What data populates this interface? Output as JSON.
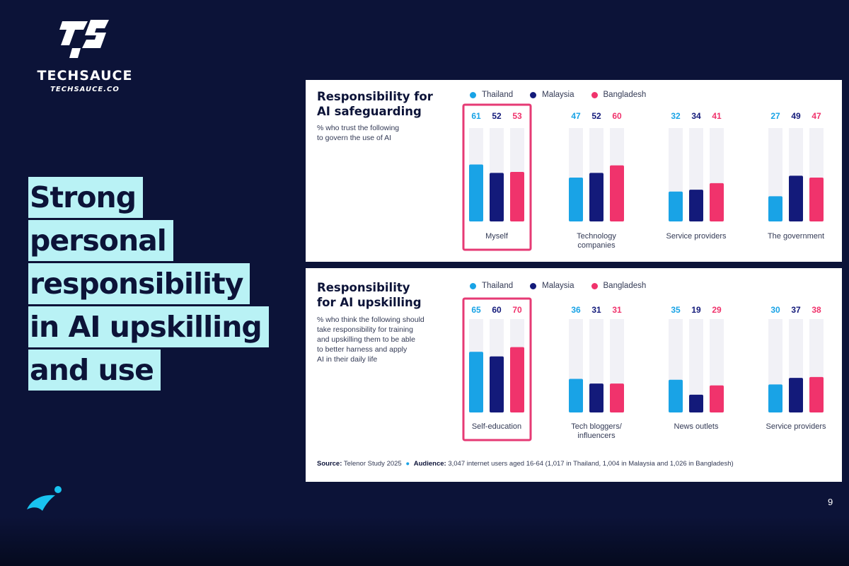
{
  "brand": {
    "name": "TECHSAUCE",
    "url": "TECHSAUCE.CO",
    "logo_icon": "techsauce-logo-icon"
  },
  "headline": [
    "Strong",
    "personal",
    "responsibility",
    "in AI upskilling",
    "and use"
  ],
  "colors": {
    "background": "#0c1338",
    "highlight": "#b9f2f5",
    "highlight_box": "#e63a74",
    "thailand": "#19a3e6",
    "malaysia": "#131a7a",
    "bangladesh": "#f0336c",
    "track": "#f1f1f6"
  },
  "chart_data": [
    {
      "type": "bar",
      "title": "Responsibility for\nAI safeguarding",
      "subtitle": "% who trust the following\nto govern the use of AI",
      "legend_position": "top",
      "ylim": [
        0,
        100
      ],
      "categories": [
        "Myself",
        "Technology\ncompanies",
        "Service providers",
        "The government"
      ],
      "highlighted_category": "Myself",
      "series": [
        {
          "name": "Thailand",
          "color": "#19a3e6",
          "values": [
            61,
            47,
            32,
            27
          ]
        },
        {
          "name": "Malaysia",
          "color": "#131a7a",
          "values": [
            52,
            52,
            34,
            49
          ]
        },
        {
          "name": "Bangladesh",
          "color": "#f0336c",
          "values": [
            53,
            60,
            41,
            47
          ]
        }
      ]
    },
    {
      "type": "bar",
      "title": "Responsibility\nfor AI upskilling",
      "subtitle": "% who think the following should\ntake responsibility for training\nand upskilling them to be able\nto better harness and apply\nAI in their daily life",
      "legend_position": "top",
      "ylim": [
        0,
        100
      ],
      "categories": [
        "Self-education",
        "Tech bloggers/\ninfluencers",
        "News outlets",
        "Service providers"
      ],
      "highlighted_category": "Self-education",
      "series": [
        {
          "name": "Thailand",
          "color": "#19a3e6",
          "values": [
            65,
            36,
            35,
            30
          ]
        },
        {
          "name": "Malaysia",
          "color": "#131a7a",
          "values": [
            60,
            31,
            19,
            37
          ]
        },
        {
          "name": "Bangladesh",
          "color": "#f0336c",
          "values": [
            70,
            31,
            29,
            38
          ]
        }
      ]
    }
  ],
  "source": {
    "label": "Source:",
    "text": "Telenor Study 2025",
    "audience_label": "Audience:",
    "audience_text": "3,047 internet users aged 16-64 (1,017 in Thailand, 1,004 in Malaysia and 1,026 in Bangladesh)"
  },
  "page_number": "9",
  "footer_icon": "telenor-logo-icon"
}
